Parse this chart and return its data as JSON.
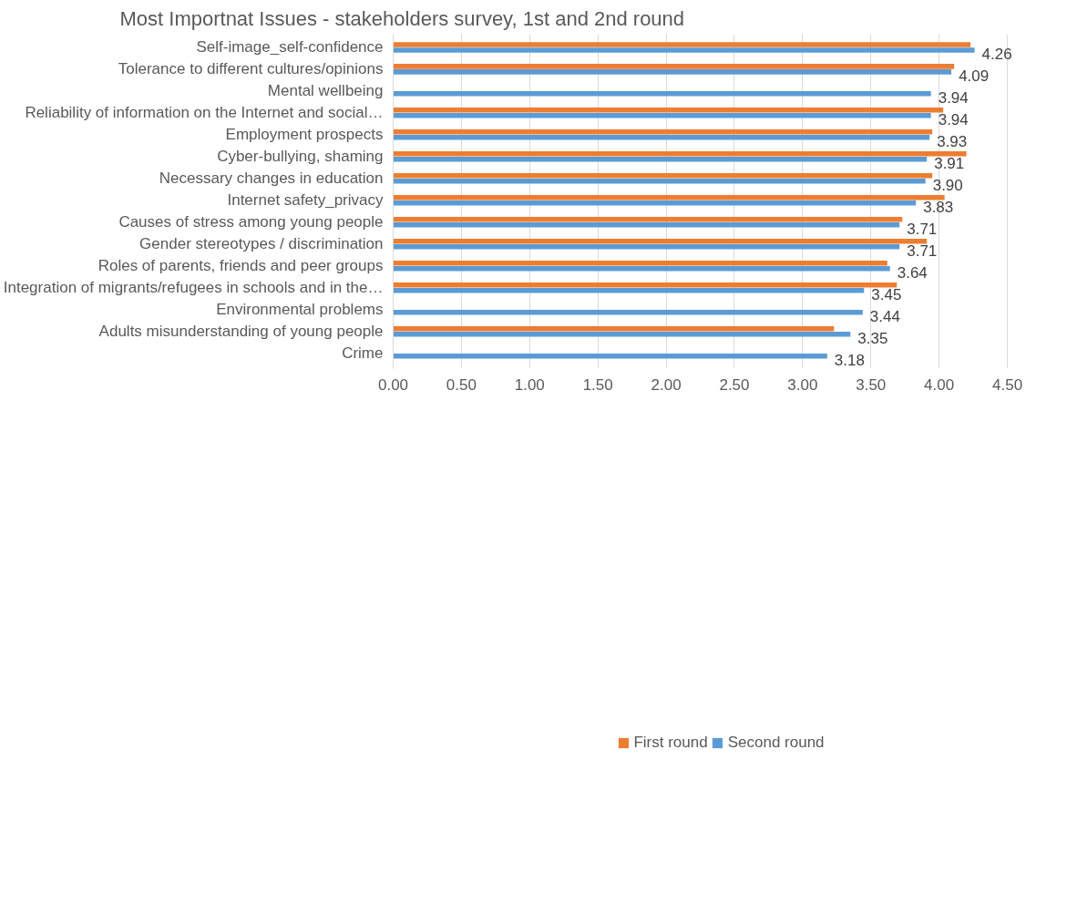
{
  "chart_data": {
    "type": "bar",
    "orientation": "horizontal",
    "title": "Most Importnat Issues - stakeholders survey, 1st and 2nd round",
    "categories": [
      "Self-image_self-confidence",
      "Tolerance to different cultures/opinions",
      "Mental wellbeing",
      "Reliability of information on the Internet and social…",
      "Employment prospects",
      "Cyber-bullying, shaming",
      "Necessary changes in education",
      "Internet safety_privacy",
      "Causes of stress among young people",
      "Gender stereotypes / discrimination",
      "Roles of parents, friends and peer groups",
      "Integration of migrants/refugees in schools and in the…",
      "Environmental problems",
      "Adults misunderstanding of young people",
      "Crime"
    ],
    "series": [
      {
        "name": "First round",
        "color": "#ed7d31",
        "values": [
          4.23,
          4.11,
          null,
          4.03,
          3.95,
          4.2,
          3.95,
          4.04,
          3.73,
          3.91,
          3.62,
          3.69,
          null,
          3.23,
          null
        ]
      },
      {
        "name": "Second round",
        "color": "#5b9bd5",
        "values": [
          4.26,
          4.09,
          3.94,
          3.94,
          3.93,
          3.91,
          3.9,
          3.83,
          3.71,
          3.71,
          3.64,
          3.45,
          3.44,
          3.35,
          3.18
        ],
        "value_labels": [
          "4.26",
          "4.09",
          "3.94",
          "3.94",
          "3.93",
          "3.91",
          "3.90",
          "3.83",
          "3.71",
          "3.71",
          "3.64",
          "3.45",
          "3.44",
          "3.35",
          "3.18"
        ]
      }
    ],
    "xlim": [
      0,
      4.5
    ],
    "xticks": [
      {
        "value": 0,
        "label": "0.00"
      },
      {
        "value": 0.5,
        "label": "0.50"
      },
      {
        "value": 1,
        "label": "1.00"
      },
      {
        "value": 1.5,
        "label": "1.50"
      },
      {
        "value": 2,
        "label": "2.00"
      },
      {
        "value": 2.5,
        "label": "2.50"
      },
      {
        "value": 3,
        "label": "3.00"
      },
      {
        "value": 3.5,
        "label": "3.50"
      },
      {
        "value": 4,
        "label": "4.00"
      },
      {
        "value": 4.5,
        "label": "4.50"
      }
    ],
    "grid": "x",
    "legend": "bottom"
  }
}
